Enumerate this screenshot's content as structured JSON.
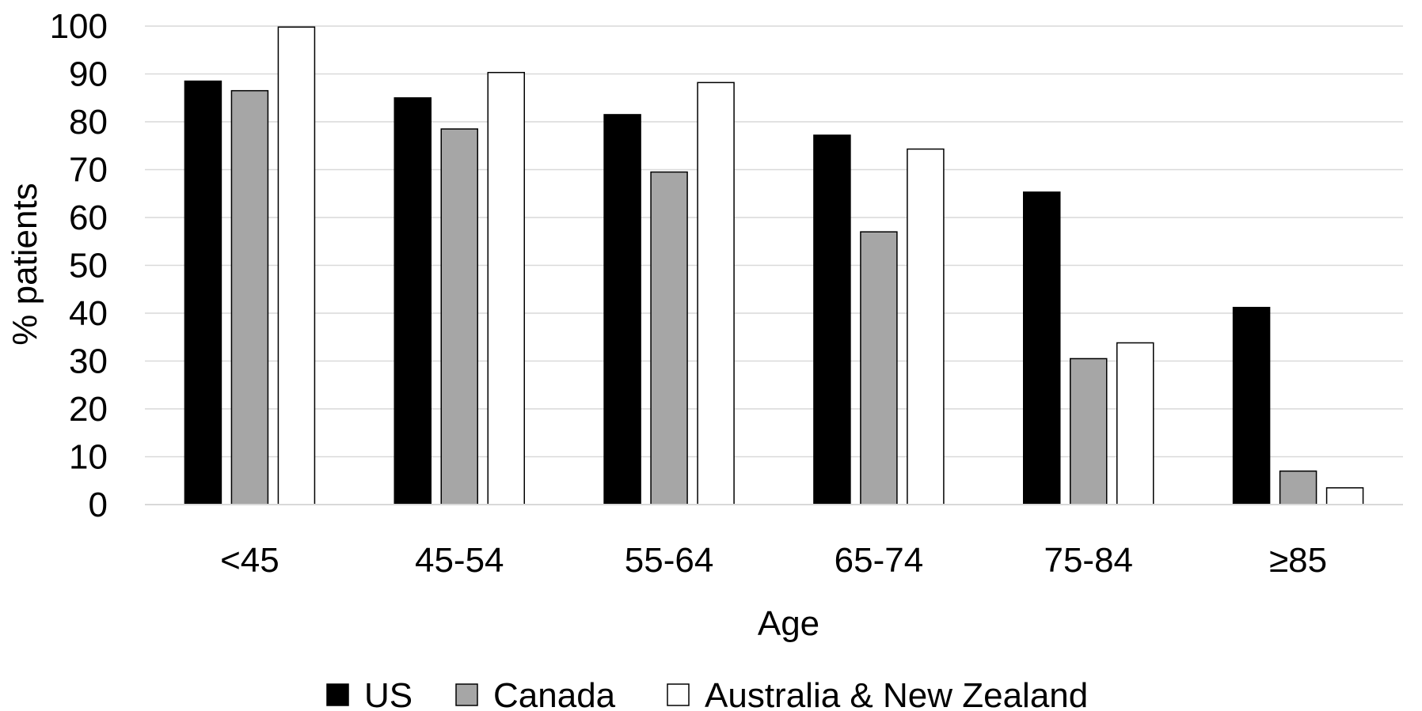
{
  "chart_data": {
    "type": "bar",
    "title": "",
    "xlabel": "Age",
    "ylabel": "% patients",
    "ylim": [
      0,
      100
    ],
    "yticks": [
      "0",
      "10",
      "20",
      "30",
      "40",
      "50",
      "60",
      "70",
      "80",
      "90",
      "100"
    ],
    "grid": true,
    "legend_position": "bottom",
    "categories": [
      "<45",
      "45-54",
      "55-64",
      "65-74",
      "75-84",
      "≥85"
    ],
    "series": [
      {
        "name": "US",
        "color": "#000000",
        "values": [
          88.5,
          85,
          81.5,
          77.2,
          65.3,
          41.2
        ]
      },
      {
        "name": "Canada",
        "color": "#a6a6a6",
        "values": [
          86.5,
          78.5,
          69.5,
          57,
          30.5,
          7
        ]
      },
      {
        "name": "Australia & New Zealand",
        "color": "#ffffff",
        "values": [
          99.8,
          90.3,
          88.2,
          74.3,
          33.8,
          3.5
        ]
      }
    ]
  }
}
